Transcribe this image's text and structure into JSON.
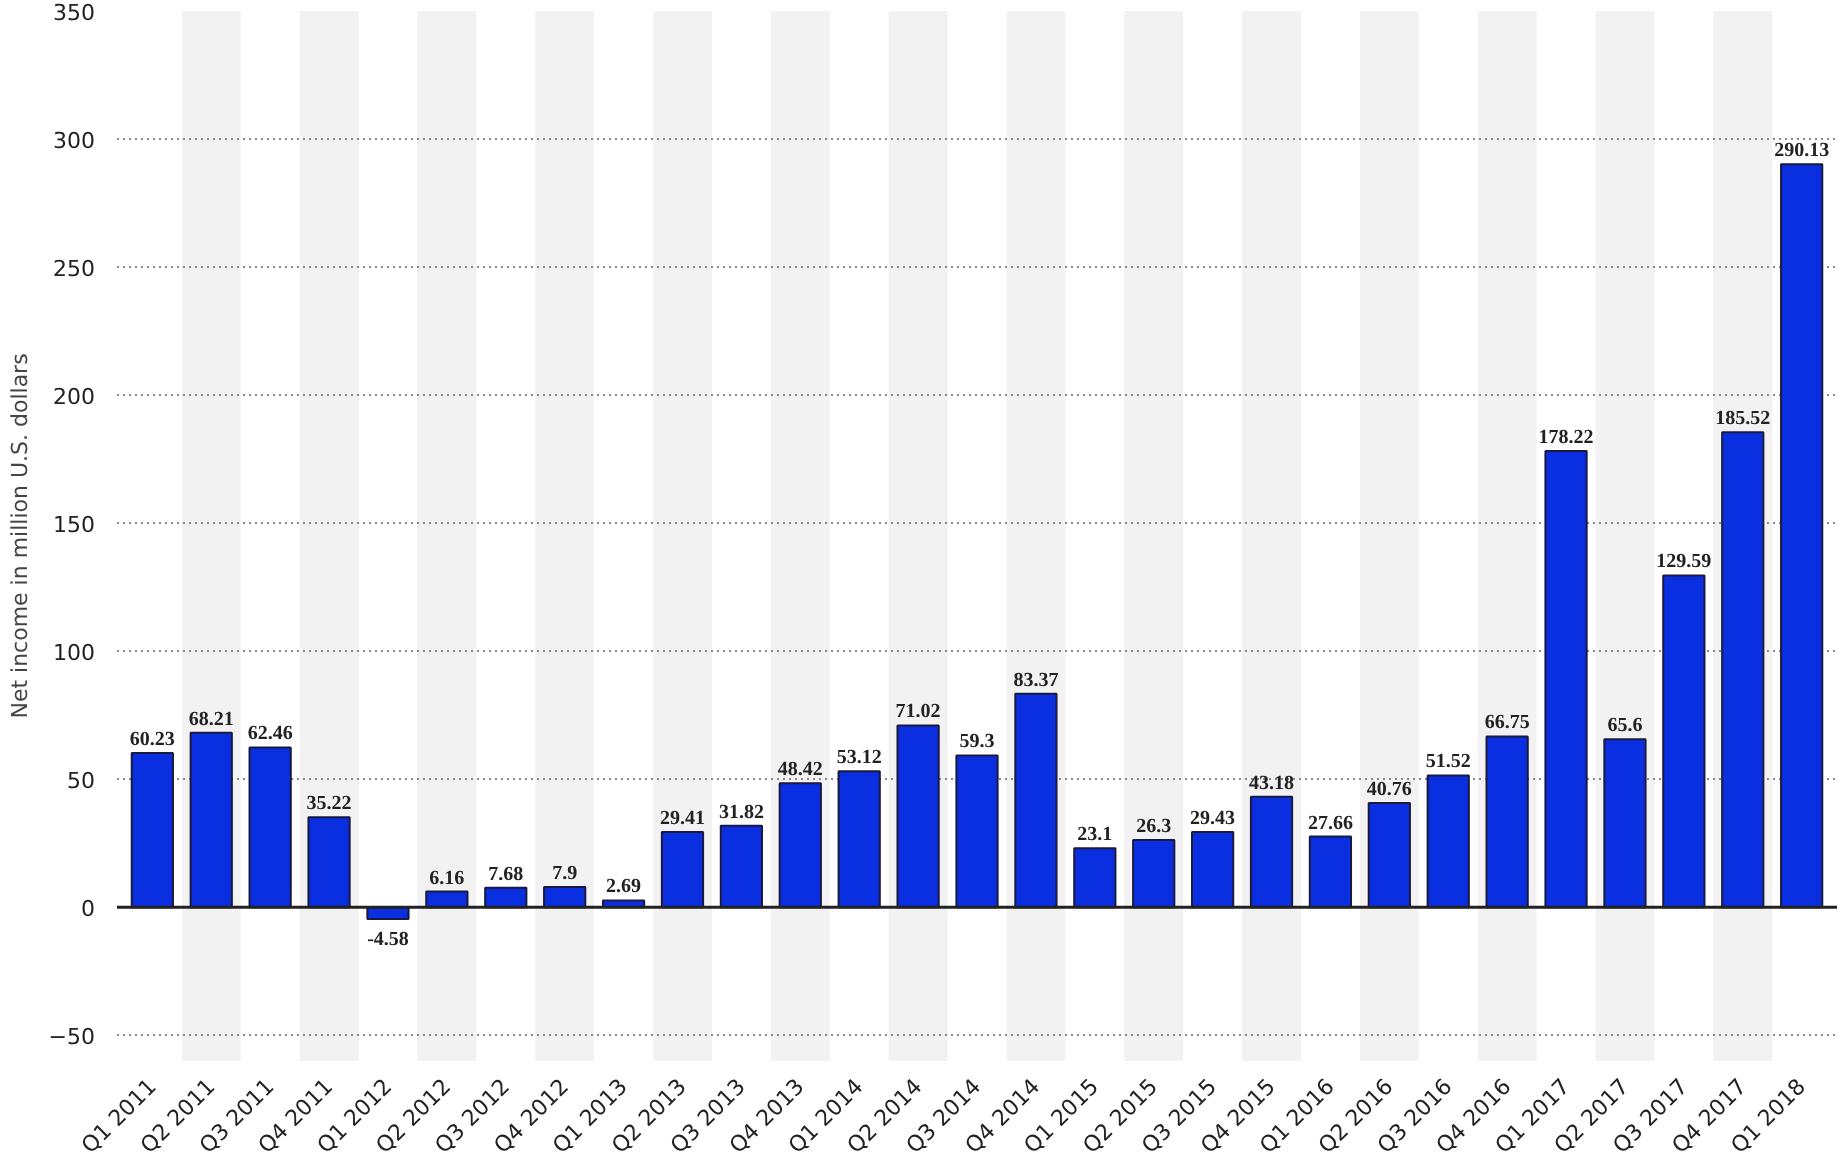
{
  "chart_data": {
    "type": "bar",
    "ylabel": "Net income in million U.S. dollars",
    "categories": [
      "Q1 2011",
      "Q2 2011",
      "Q3 2011",
      "Q4 2011",
      "Q1 2012",
      "Q2 2012",
      "Q3 2012",
      "Q4 2012",
      "Q1 2013",
      "Q2 2013",
      "Q3 2013",
      "Q4 2013",
      "Q1 2014",
      "Q2 2014",
      "Q3 2014",
      "Q4 2014",
      "Q1 2015",
      "Q2 2015",
      "Q3 2015",
      "Q4 2015",
      "Q1 2016",
      "Q2 2016",
      "Q3 2016",
      "Q4 2016",
      "Q1 2017",
      "Q2 2017",
      "Q3 2017",
      "Q4 2017",
      "Q1 2018"
    ],
    "values": [
      60.23,
      68.21,
      62.46,
      35.22,
      -4.58,
      6.16,
      7.68,
      7.9,
      2.69,
      29.41,
      31.82,
      48.42,
      53.12,
      71.02,
      59.3,
      83.37,
      23.1,
      26.3,
      29.43,
      43.18,
      27.66,
      40.76,
      51.52,
      66.75,
      178.22,
      65.6,
      129.59,
      185.52,
      290.13
    ],
    "color": "#0a2fe0",
    "ylim": [
      -60,
      350
    ],
    "yticks": [
      -50,
      0,
      50,
      100,
      150,
      200,
      250,
      300,
      350
    ],
    "grid": "y",
    "data_labels": true
  }
}
